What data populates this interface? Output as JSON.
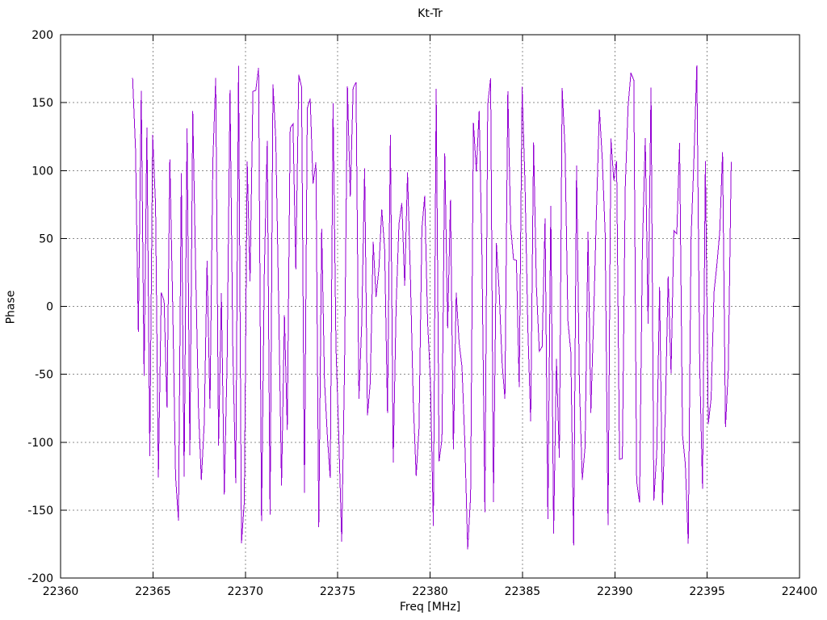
{
  "chart_data": {
    "type": "line",
    "title": "Kt-Tr",
    "xlabel": "Freq [MHz]",
    "ylabel": "Phase",
    "xlim": [
      22360,
      22400
    ],
    "ylim": [
      -200,
      200
    ],
    "x_ticks": [
      22360,
      22365,
      22370,
      22375,
      22380,
      22385,
      22390,
      22395,
      22400
    ],
    "y_ticks": [
      -200,
      -150,
      -100,
      -50,
      0,
      50,
      100,
      150,
      200
    ],
    "grid": true,
    "grid_style": "dotted",
    "grid_color": "#8c8c8c",
    "axis_color": "#000000",
    "background_color": "#ffffff",
    "legend": "none",
    "series": [
      {
        "name": "Kt-Tr",
        "color": "#9400d3",
        "style": "lines",
        "x_start": 22363.9,
        "x_end": 22396.3,
        "n_points": 210,
        "y_min": -180,
        "y_max": 180,
        "note": "Wrapped (aliased) phase noise densely filling -180..+180 deg across the data span; rendered as connected line segments that appear as closely spaced vertical strokes",
        "synthesis": {
          "seed": 7,
          "step_deg": 493,
          "wobble_deg": 285,
          "wobble_period_samples": 23,
          "noise_deg": 170
        }
      }
    ]
  }
}
